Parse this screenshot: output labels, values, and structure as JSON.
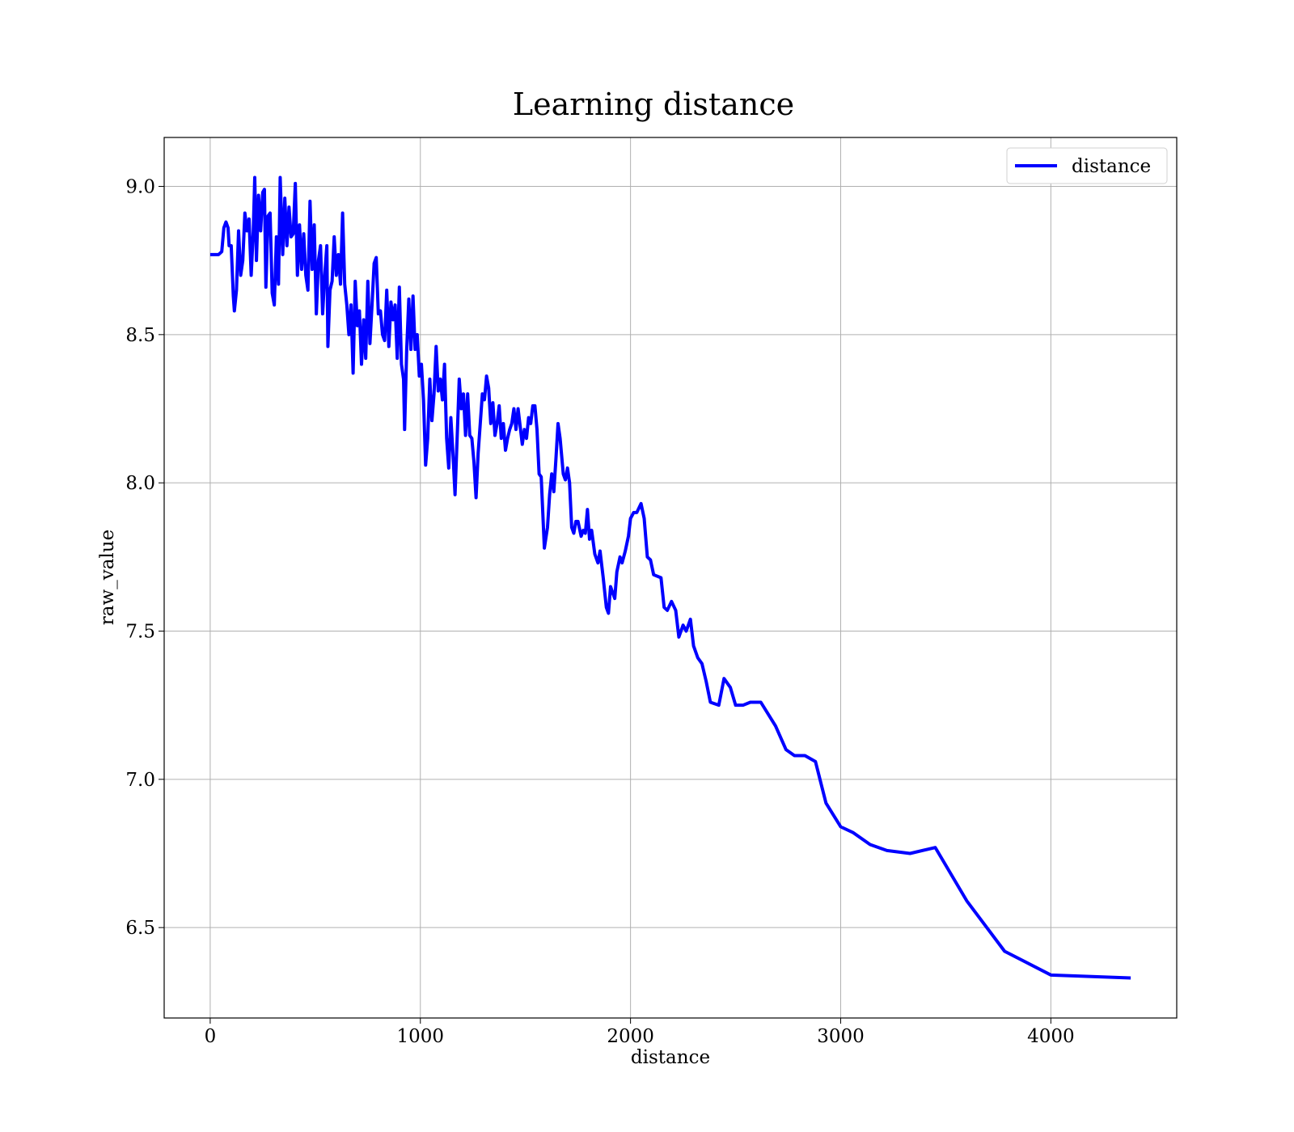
{
  "chart_data": {
    "type": "line",
    "title": "Learning distance",
    "xlabel": "distance",
    "ylabel": "raw_value",
    "x": [
      0,
      40,
      55,
      65,
      75,
      85,
      90,
      100,
      110,
      115,
      125,
      135,
      145,
      155,
      165,
      175,
      185,
      195,
      205,
      212,
      220,
      230,
      240,
      250,
      258,
      265,
      275,
      285,
      295,
      305,
      315,
      325,
      333,
      345,
      355,
      365,
      375,
      385,
      395,
      405,
      415,
      425,
      435,
      445,
      455,
      465,
      475,
      485,
      495,
      505,
      515,
      525,
      535,
      545,
      555,
      560,
      570,
      580,
      590,
      600,
      610,
      620,
      630,
      640,
      650,
      660,
      670,
      680,
      690,
      700,
      710,
      720,
      730,
      740,
      750,
      760,
      770,
      780,
      790,
      800,
      810,
      820,
      830,
      840,
      850,
      860,
      870,
      880,
      890,
      900,
      910,
      920,
      925,
      935,
      945,
      955,
      965,
      975,
      985,
      995,
      1005,
      1015,
      1025,
      1035,
      1045,
      1055,
      1065,
      1075,
      1085,
      1095,
      1105,
      1115,
      1125,
      1135,
      1145,
      1155,
      1165,
      1175,
      1185,
      1195,
      1205,
      1215,
      1225,
      1235,
      1245,
      1255,
      1265,
      1275,
      1285,
      1295,
      1305,
      1315,
      1325,
      1335,
      1345,
      1355,
      1365,
      1375,
      1385,
      1395,
      1405,
      1415,
      1425,
      1435,
      1445,
      1455,
      1465,
      1475,
      1485,
      1495,
      1505,
      1515,
      1525,
      1535,
      1545,
      1555,
      1565,
      1575,
      1590,
      1605,
      1615,
      1625,
      1635,
      1645,
      1655,
      1665,
      1680,
      1690,
      1700,
      1710,
      1720,
      1730,
      1740,
      1750,
      1765,
      1775,
      1785,
      1795,
      1805,
      1815,
      1830,
      1845,
      1855,
      1870,
      1885,
      1895,
      1905,
      1925,
      1935,
      1950,
      1960,
      1975,
      1990,
      2000,
      2015,
      2030,
      2050,
      2065,
      2080,
      2095,
      2110,
      2145,
      2160,
      2175,
      2195,
      2215,
      2230,
      2250,
      2265,
      2285,
      2300,
      2320,
      2340,
      2360,
      2380,
      2420,
      2445,
      2475,
      2500,
      2535,
      2570,
      2620,
      2690,
      2740,
      2780,
      2830,
      2880,
      2930,
      3000,
      3060,
      3140,
      3220,
      3330,
      3450,
      3600,
      3780,
      4000,
      4380
    ],
    "series": [
      {
        "name": "distance",
        "color": "#0000ff",
        "values": [
          8.77,
          8.77,
          8.78,
          8.86,
          8.88,
          8.86,
          8.8,
          8.8,
          8.63,
          8.58,
          8.65,
          8.85,
          8.7,
          8.75,
          8.91,
          8.85,
          8.89,
          8.7,
          8.85,
          9.03,
          8.75,
          8.97,
          8.85,
          8.98,
          8.99,
          8.66,
          8.9,
          8.91,
          8.64,
          8.6,
          8.83,
          8.67,
          9.03,
          8.77,
          8.96,
          8.8,
          8.93,
          8.83,
          8.84,
          9.01,
          8.7,
          8.87,
          8.72,
          8.84,
          8.7,
          8.65,
          8.95,
          8.72,
          8.87,
          8.57,
          8.75,
          8.8,
          8.57,
          8.7,
          8.8,
          8.46,
          8.65,
          8.68,
          8.83,
          8.7,
          8.77,
          8.67,
          8.91,
          8.67,
          8.6,
          8.5,
          8.6,
          8.37,
          8.68,
          8.53,
          8.58,
          8.4,
          8.55,
          8.42,
          8.68,
          8.47,
          8.6,
          8.74,
          8.76,
          8.57,
          8.58,
          8.5,
          8.48,
          8.65,
          8.46,
          8.61,
          8.55,
          8.6,
          8.42,
          8.66,
          8.4,
          8.35,
          8.18,
          8.45,
          8.62,
          8.45,
          8.63,
          8.45,
          8.5,
          8.36,
          8.4,
          8.28,
          8.06,
          8.15,
          8.35,
          8.21,
          8.3,
          8.46,
          8.31,
          8.35,
          8.28,
          8.4,
          8.15,
          8.05,
          8.22,
          8.1,
          7.96,
          8.15,
          8.35,
          8.25,
          8.3,
          8.16,
          8.3,
          8.16,
          8.15,
          8.07,
          7.95,
          8.1,
          8.2,
          8.3,
          8.28,
          8.36,
          8.32,
          8.2,
          8.27,
          8.16,
          8.2,
          8.26,
          8.15,
          8.2,
          8.11,
          8.15,
          8.18,
          8.2,
          8.25,
          8.18,
          8.25,
          8.19,
          8.13,
          8.18,
          8.15,
          8.22,
          8.2,
          8.26,
          8.26,
          8.18,
          8.03,
          8.02,
          7.78,
          7.85,
          7.96,
          8.03,
          7.97,
          8.08,
          8.2,
          8.15,
          8.03,
          8.01,
          8.05,
          8.0,
          7.85,
          7.83,
          7.87,
          7.87,
          7.82,
          7.84,
          7.83,
          7.91,
          7.81,
          7.84,
          7.76,
          7.73,
          7.77,
          7.68,
          7.58,
          7.56,
          7.65,
          7.61,
          7.7,
          7.75,
          7.73,
          7.77,
          7.82,
          7.88,
          7.9,
          7.9,
          7.93,
          7.88,
          7.75,
          7.74,
          7.69,
          7.68,
          7.58,
          7.57,
          7.6,
          7.57,
          7.48,
          7.52,
          7.5,
          7.54,
          7.45,
          7.41,
          7.39,
          7.33,
          7.26,
          7.25,
          7.34,
          7.31,
          7.25,
          7.25,
          7.26,
          7.26,
          7.18,
          7.1,
          7.08,
          7.08,
          7.06,
          6.92,
          6.84,
          6.82,
          6.78,
          6.76,
          6.75,
          6.77,
          6.59,
          6.42,
          6.34,
          6.33
        ]
      }
    ],
    "xlim": [
      -219,
      4599
    ],
    "xticks": [
      0,
      1000,
      2000,
      3000,
      4000
    ],
    "ylim": [
      6.195,
      9.165
    ],
    "yticks": [
      {
        "value": 6.5,
        "label": "6.5"
      },
      {
        "value": 7,
        "label": "7.0"
      },
      {
        "value": 7.5,
        "label": "7.5"
      },
      {
        "value": 8,
        "label": "8.0"
      },
      {
        "value": 8.5,
        "label": "8.5"
      },
      {
        "value": 9,
        "label": "9.0"
      }
    ],
    "grid": true,
    "legend": "upper right"
  }
}
